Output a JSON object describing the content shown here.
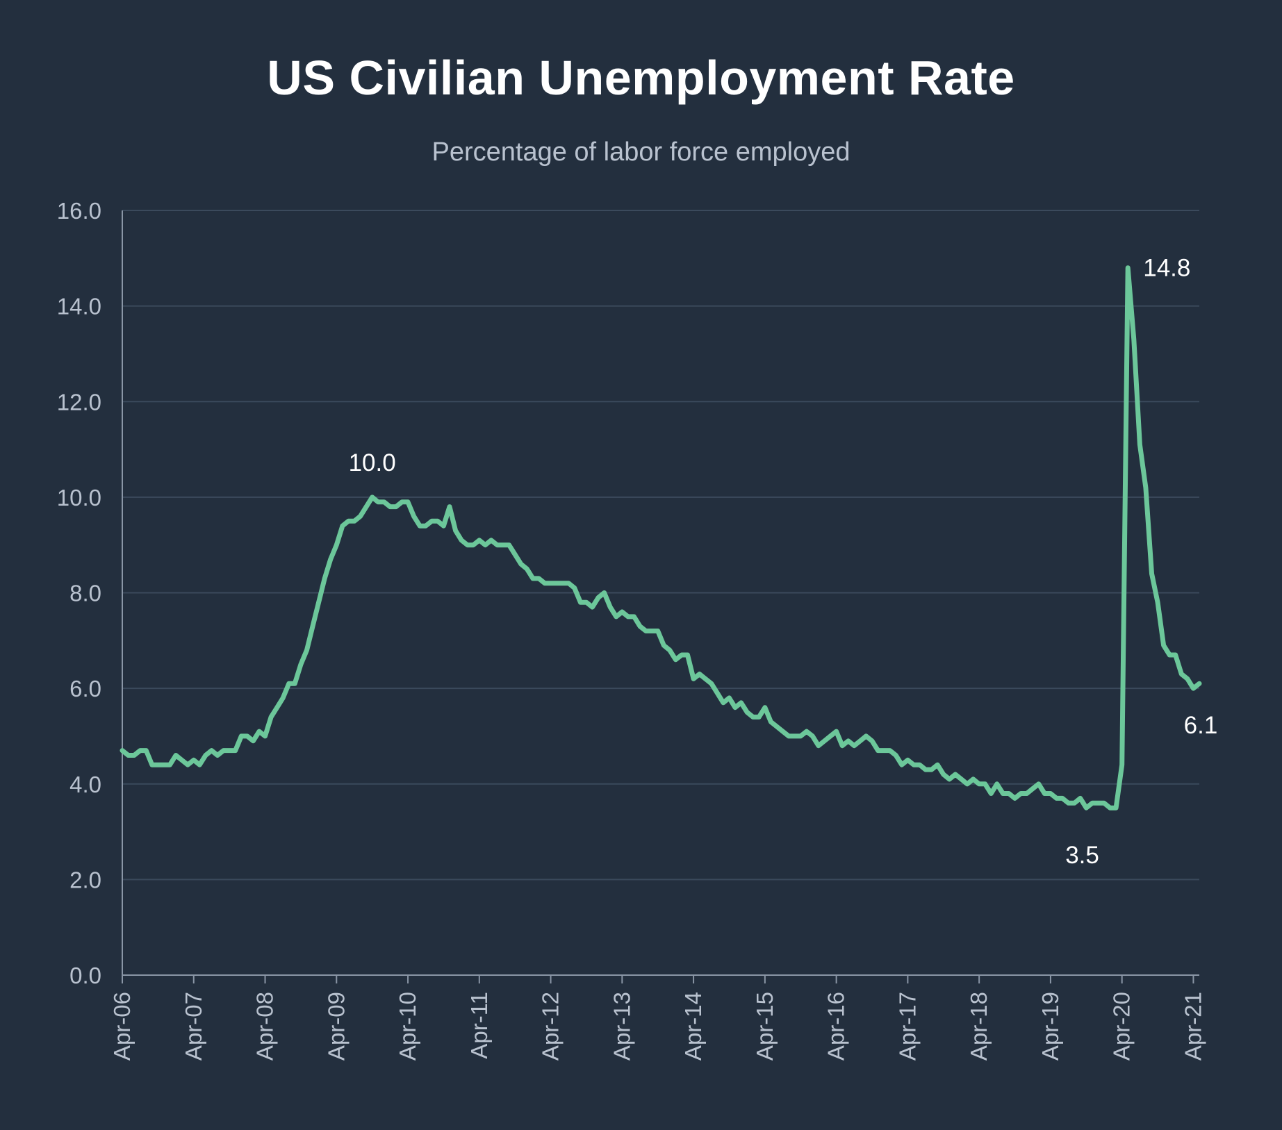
{
  "chart_data": {
    "type": "line",
    "title": "US Civilian Unemployment Rate",
    "subtitle": "Percentage of labor force employed",
    "xlabel": "",
    "ylabel": "",
    "ylim": [
      0,
      16
    ],
    "yticks": [
      "0.0",
      "2.0",
      "4.0",
      "6.0",
      "8.0",
      "10.0",
      "12.0",
      "14.0",
      "16.0"
    ],
    "xticks": [
      "Apr-06",
      "Apr-07",
      "Apr-08",
      "Apr-09",
      "Apr-10",
      "Apr-11",
      "Apr-12",
      "Apr-13",
      "Apr-14",
      "Apr-15",
      "Apr-16",
      "Apr-17",
      "Apr-18",
      "Apr-19",
      "Apr-20",
      "Apr-21"
    ],
    "grid": true,
    "line_color": "#6cc79a",
    "series": [
      {
        "name": "Unemployment rate",
        "start": "Apr-06",
        "frequency": "monthly",
        "values": [
          4.7,
          4.6,
          4.6,
          4.7,
          4.7,
          4.4,
          4.4,
          4.4,
          4.4,
          4.6,
          4.5,
          4.4,
          4.5,
          4.4,
          4.6,
          4.7,
          4.6,
          4.7,
          4.7,
          4.7,
          5.0,
          5.0,
          4.9,
          5.1,
          5.0,
          5.4,
          5.6,
          5.8,
          6.1,
          6.1,
          6.5,
          6.8,
          7.3,
          7.8,
          8.3,
          8.7,
          9.0,
          9.4,
          9.5,
          9.5,
          9.6,
          9.8,
          10.0,
          9.9,
          9.9,
          9.8,
          9.8,
          9.9,
          9.9,
          9.6,
          9.4,
          9.4,
          9.5,
          9.5,
          9.4,
          9.8,
          9.3,
          9.1,
          9.0,
          9.0,
          9.1,
          9.0,
          9.1,
          9.0,
          9.0,
          9.0,
          8.8,
          8.6,
          8.5,
          8.3,
          8.3,
          8.2,
          8.2,
          8.2,
          8.2,
          8.2,
          8.1,
          7.8,
          7.8,
          7.7,
          7.9,
          8.0,
          7.7,
          7.5,
          7.6,
          7.5,
          7.5,
          7.3,
          7.2,
          7.2,
          7.2,
          6.9,
          6.8,
          6.6,
          6.7,
          6.7,
          6.2,
          6.3,
          6.2,
          6.1,
          5.9,
          5.7,
          5.8,
          5.6,
          5.7,
          5.5,
          5.4,
          5.4,
          5.6,
          5.3,
          5.2,
          5.1,
          5.0,
          5.0,
          5.0,
          5.1,
          5.0,
          4.8,
          4.9,
          5.0,
          5.1,
          4.8,
          4.9,
          4.8,
          4.9,
          5.0,
          4.9,
          4.7,
          4.7,
          4.7,
          4.6,
          4.4,
          4.5,
          4.4,
          4.4,
          4.3,
          4.3,
          4.4,
          4.2,
          4.1,
          4.2,
          4.1,
          4.0,
          4.1,
          4.0,
          4.0,
          3.8,
          4.0,
          3.8,
          3.8,
          3.7,
          3.8,
          3.8,
          3.9,
          4.0,
          3.8,
          3.8,
          3.7,
          3.7,
          3.6,
          3.6,
          3.7,
          3.5,
          3.6,
          3.6,
          3.6,
          3.5,
          3.5,
          4.4,
          14.8,
          13.3,
          11.1,
          10.2,
          8.4,
          7.8,
          6.9,
          6.7,
          6.7,
          6.3,
          6.2,
          6.0,
          6.1
        ]
      }
    ],
    "annotations": [
      {
        "label": "10.0",
        "x_index": 42,
        "value": 10.0,
        "position": "above"
      },
      {
        "label": "14.8",
        "x_index": 169,
        "value": 14.8,
        "position": "right"
      },
      {
        "label": "3.5",
        "x_index": 166,
        "value": 3.5,
        "position": "below-left"
      },
      {
        "label": "6.1",
        "x_index": 181,
        "value": 6.1,
        "position": "below-right"
      }
    ]
  }
}
